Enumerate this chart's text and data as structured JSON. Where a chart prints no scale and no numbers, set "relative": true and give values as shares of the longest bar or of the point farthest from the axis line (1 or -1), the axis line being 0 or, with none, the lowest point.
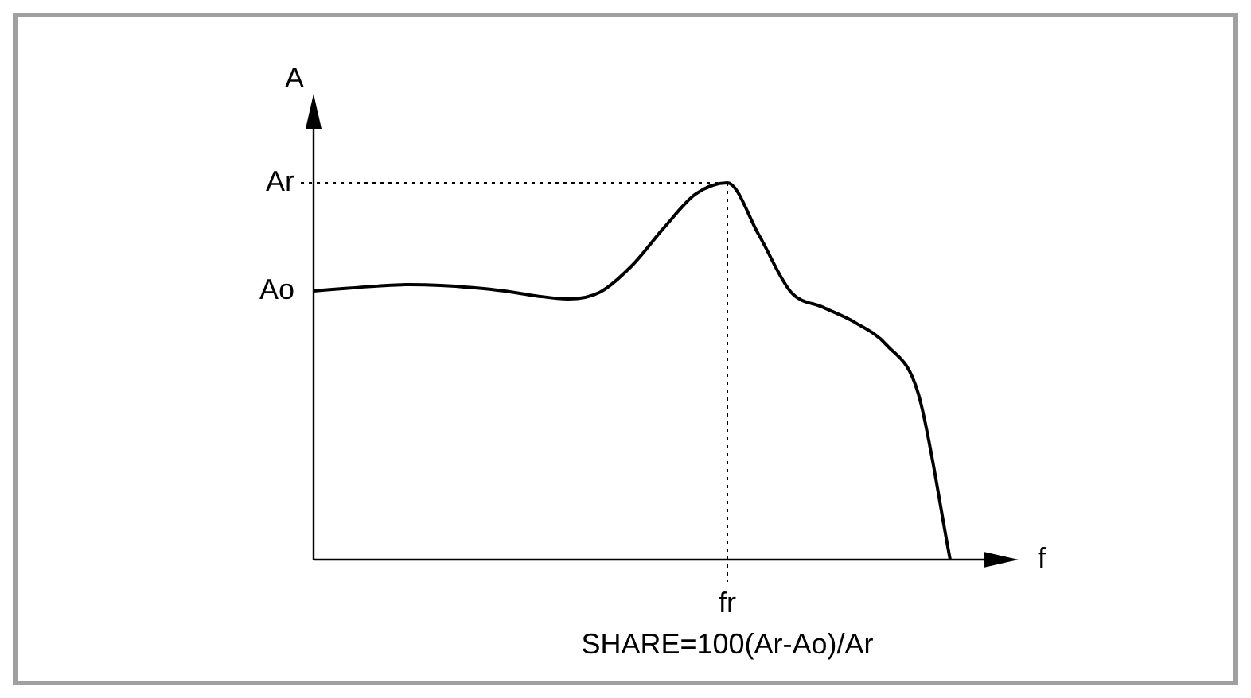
{
  "chart_data": {
    "type": "line",
    "relative": true,
    "ylabel": "A",
    "xlabel": "f",
    "categories": [
      null,
      null,
      null,
      null,
      null,
      null,
      null,
      null,
      null,
      null,
      null,
      null,
      null,
      null,
      null,
      null,
      null,
      null,
      null,
      null,
      null
    ],
    "series": [
      {
        "color": "#000000",
        "values": [
          0.713,
          0.72,
          0.726,
          0.73,
          0.728,
          0.722,
          0.713,
          0.7,
          0.692,
          0.71,
          0.78,
          0.88,
          0.97,
          1,
          0.86,
          0.71,
          0.67,
          0.63,
          0.57,
          0.44,
          0
        ]
      }
    ],
    "marker": "none",
    "legend": false,
    "annotations": [
      "Ar",
      "Ao",
      "fr",
      "SHARE=100(Ar-Ao)/Ar"
    ]
  }
}
